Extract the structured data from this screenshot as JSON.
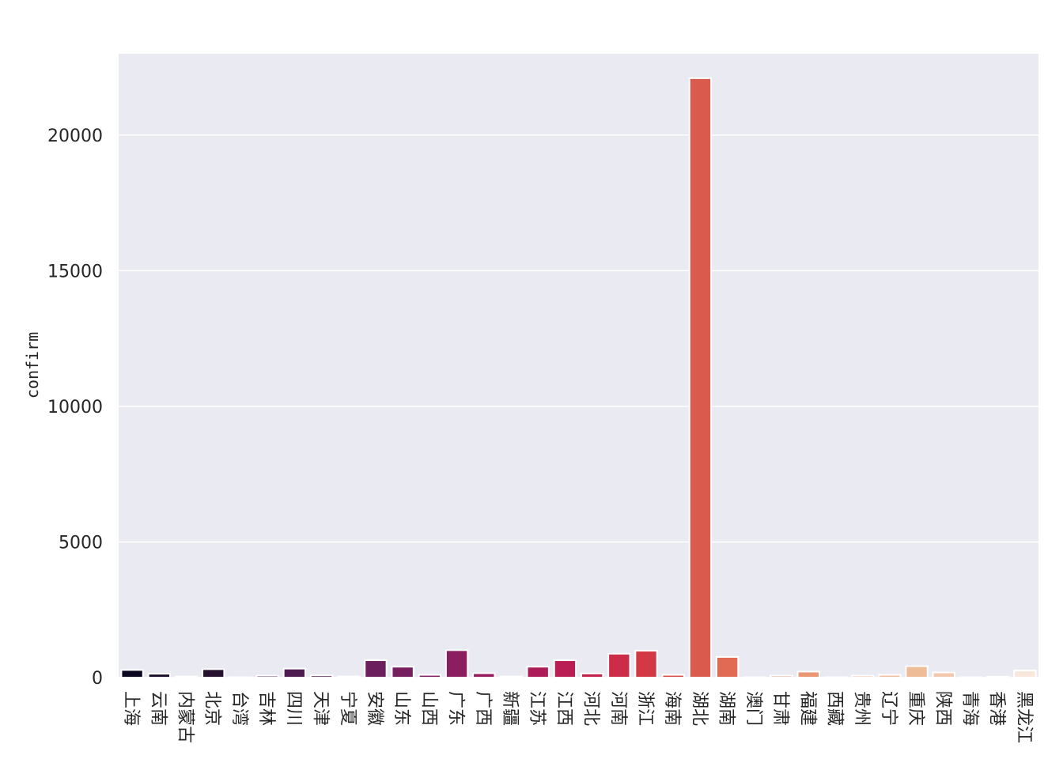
{
  "chart_data": {
    "type": "bar",
    "title": "",
    "xlabel": "",
    "ylabel": "confirm",
    "ylim": [
      0,
      23000
    ],
    "yticks": [
      0,
      5000,
      10000,
      15000,
      20000
    ],
    "grid": true,
    "legend": "none",
    "categories": [
      "上海",
      "云南",
      "内蒙古",
      "北京",
      "台湾",
      "吉林",
      "四川",
      "天津",
      "宁夏",
      "安徽",
      "山东",
      "山西",
      "广东",
      "广西",
      "新疆",
      "江苏",
      "江西",
      "河北",
      "河南",
      "浙江",
      "海南",
      "湖北",
      "湖南",
      "澳门",
      "甘肃",
      "福建",
      "西藏",
      "贵州",
      "辽宁",
      "重庆",
      "陕西",
      "青海",
      "香港",
      "黑龙江"
    ],
    "values": [
      280,
      140,
      40,
      310,
      15,
      70,
      330,
      80,
      40,
      640,
      400,
      100,
      1010,
      160,
      40,
      400,
      640,
      150,
      880,
      990,
      100,
      22100,
      760,
      8,
      70,
      220,
      1,
      70,
      100,
      420,
      190,
      15,
      30,
      260
    ],
    "colors": [
      "#0b0720",
      "#170d28",
      "#2a1233",
      "#25112e",
      "#3a1740",
      "#43194a",
      "#4d1b4f",
      "#591d55",
      "#611f58",
      "#6b1f5c",
      "#751f5f",
      "#7f1e60",
      "#8a1e5f",
      "#951d5e",
      "#a11c5b",
      "#ad1b58",
      "#b91d54",
      "#c3234f",
      "#cd2c49",
      "#d33845",
      "#d84a43",
      "#db5a4e",
      "#e06a54",
      "#e4785c",
      "#e68968",
      "#ea9774",
      "#eca87e",
      "#eeb38e",
      "#f1bd9c",
      "#eebc96",
      "#f2c9ac",
      "#f4d0b7",
      "#f6d9c4",
      "#f9e7db"
    ],
    "colors_note_hidden": ""
  },
  "y_tick_labels": [
    "0",
    "5000",
    "10000",
    "15000",
    "20000"
  ]
}
